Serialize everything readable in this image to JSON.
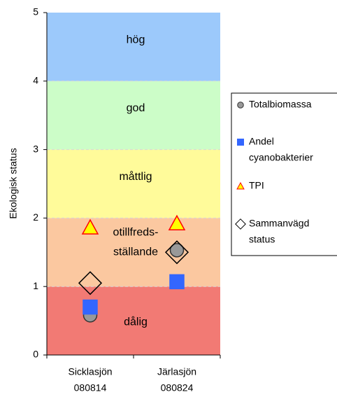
{
  "chart_data": {
    "type": "scatter",
    "y_label": "Ekologisk status",
    "categories": [
      [
        "Sicklasjön",
        "080814"
      ],
      [
        "Järlasjön",
        "080824"
      ]
    ],
    "ylim": [
      0,
      5
    ],
    "yticks": [
      0,
      1,
      2,
      3,
      4,
      5
    ],
    "bands": [
      {
        "range": [
          0,
          1
        ],
        "label": [
          "dålig"
        ],
        "color": "#f27a74"
      },
      {
        "range": [
          1,
          2
        ],
        "label": [
          "otillfreds-",
          "ställande"
        ],
        "color": "#fbc8a0"
      },
      {
        "range": [
          2,
          3
        ],
        "label": [
          "måttlig"
        ],
        "color": "#fffb9a"
      },
      {
        "range": [
          3,
          4
        ],
        "label": [
          "god"
        ],
        "color": "#ccfdc8"
      },
      {
        "range": [
          4,
          5
        ],
        "label": [
          "hög"
        ],
        "color": "#9cc9fb"
      }
    ],
    "series": [
      {
        "name": [
          "Totalbiomassa"
        ],
        "marker": "circle",
        "color": "#999999",
        "stroke": "#333333",
        "values": [
          0.58,
          1.53
        ]
      },
      {
        "name": [
          "Andel",
          "cyanobakterier"
        ],
        "marker": "square",
        "color": "#3366ff",
        "stroke": "#3366ff",
        "values": [
          0.7,
          1.07
        ]
      },
      {
        "name": [
          "TPI"
        ],
        "marker": "triangle",
        "color": "#ffff00",
        "stroke": "#ff0000",
        "values": [
          1.86,
          1.92
        ]
      },
      {
        "name": [
          "Sammanvägd",
          "status"
        ],
        "marker": "diamond",
        "color": "none",
        "stroke": "#000000",
        "values": [
          1.05,
          1.5
        ]
      }
    ]
  }
}
